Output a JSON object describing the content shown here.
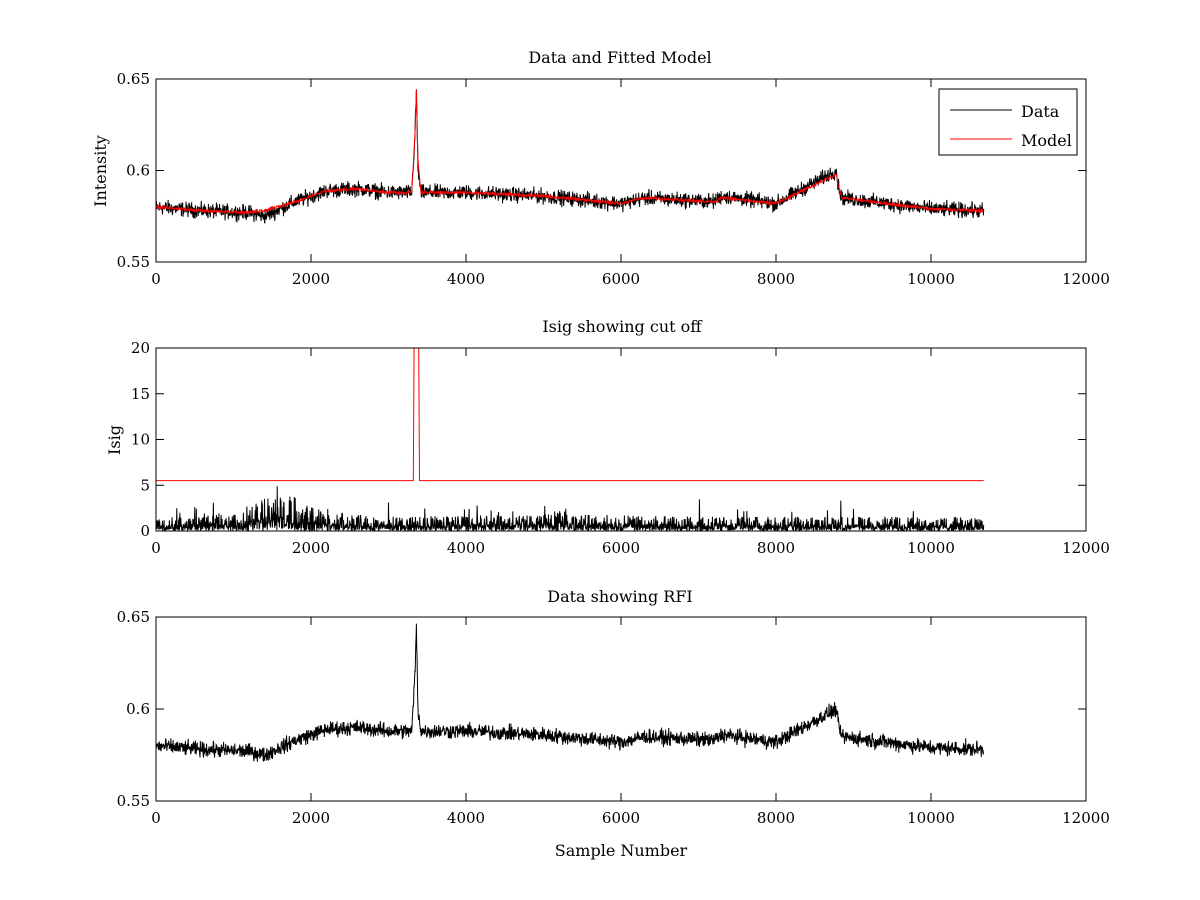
{
  "chart_data": [
    {
      "type": "line",
      "title": "Data and Fitted Model",
      "xlabel": "",
      "ylabel": "Intensity",
      "xlim": [
        0,
        12000
      ],
      "ylim": [
        0.55,
        0.65
      ],
      "xticks": [
        "0",
        "2000",
        "4000",
        "6000",
        "8000",
        "10000",
        "12000"
      ],
      "yticks": [
        "0.55",
        "0.6",
        "0.65"
      ],
      "grid": false,
      "legend": {
        "placement": "top-right",
        "entries": [
          "Data",
          "Model"
        ]
      },
      "series": [
        {
          "name": "Data",
          "color": "#000000",
          "style": "noisy",
          "noise_amplitude": 0.006,
          "x": [
            0,
            600,
            1200,
            1400,
            1800,
            2200,
            2600,
            3000,
            3300,
            3340,
            3360,
            3380,
            3420,
            4000,
            5000,
            6000,
            6300,
            7200,
            7300,
            8000,
            8780,
            8800,
            8850,
            10000,
            10680
          ],
          "y": [
            0.58,
            0.578,
            0.577,
            0.575,
            0.583,
            0.589,
            0.59,
            0.588,
            0.588,
            0.618,
            0.644,
            0.6,
            0.588,
            0.588,
            0.586,
            0.582,
            0.585,
            0.583,
            0.586,
            0.582,
            0.6,
            0.592,
            0.585,
            0.579,
            0.578
          ]
        },
        {
          "name": "Model",
          "color": "#ff0000",
          "style": "smooth",
          "x": [
            0,
            600,
            1200,
            1400,
            1800,
            2200,
            2600,
            3000,
            3300,
            3340,
            3360,
            3380,
            3420,
            4000,
            5000,
            6000,
            6300,
            7200,
            7300,
            8000,
            8780,
            8800,
            8850,
            10000,
            10680
          ],
          "y": [
            0.58,
            0.578,
            0.577,
            0.578,
            0.583,
            0.589,
            0.59,
            0.588,
            0.588,
            0.618,
            0.644,
            0.605,
            0.588,
            0.588,
            0.586,
            0.582,
            0.585,
            0.583,
            0.585,
            0.582,
            0.598,
            0.592,
            0.585,
            0.579,
            0.578
          ]
        }
      ]
    },
    {
      "type": "line",
      "title": "Isig showing cut off",
      "xlabel": "",
      "ylabel": "Isig",
      "xlim": [
        0,
        12000
      ],
      "ylim": [
        0,
        20
      ],
      "xticks": [
        "0",
        "2000",
        "4000",
        "6000",
        "8000",
        "10000",
        "12000"
      ],
      "yticks": [
        "0",
        "5",
        "10",
        "15",
        "20"
      ],
      "grid": false,
      "series": [
        {
          "color": "#000000",
          "style": "noisy-positive",
          "noise_amplitude": 1.6,
          "x": [
            0,
            1000,
            1400,
            1800,
            2200,
            3000,
            5000,
            5300,
            5400,
            7000,
            10000,
            10680
          ],
          "y": [
            0.6,
            0.7,
            1.4,
            1.5,
            0.8,
            0.6,
            0.7,
            1.0,
            0.7,
            0.6,
            0.6,
            0.6
          ]
        },
        {
          "color": "#ff0000",
          "style": "step",
          "x": [
            0,
            3320,
            3330,
            3390,
            3400,
            10680
          ],
          "y": [
            5.5,
            5.5,
            20,
            20,
            5.5,
            5.5
          ]
        }
      ]
    },
    {
      "type": "line",
      "title": "Data showing RFI",
      "xlabel": "Sample Number",
      "ylabel": "",
      "xlim": [
        0,
        12000
      ],
      "ylim": [
        0.55,
        0.65
      ],
      "xticks": [
        "0",
        "2000",
        "4000",
        "6000",
        "8000",
        "10000",
        "12000"
      ],
      "yticks": [
        "0.55",
        "0.6",
        "0.65"
      ],
      "grid": false,
      "series": [
        {
          "color": "#000000",
          "style": "noisy",
          "noise_amplitude": 0.006,
          "x": [
            0,
            600,
            1200,
            1400,
            1800,
            2200,
            2600,
            3000,
            3300,
            3340,
            3360,
            3380,
            3420,
            4000,
            5000,
            6000,
            6300,
            7200,
            7300,
            8000,
            8780,
            8800,
            8850,
            10000,
            10680
          ],
          "y": [
            0.58,
            0.578,
            0.577,
            0.575,
            0.583,
            0.589,
            0.59,
            0.588,
            0.588,
            0.618,
            0.644,
            0.6,
            0.588,
            0.588,
            0.586,
            0.582,
            0.585,
            0.583,
            0.586,
            0.582,
            0.6,
            0.592,
            0.585,
            0.579,
            0.578
          ]
        }
      ]
    }
  ]
}
